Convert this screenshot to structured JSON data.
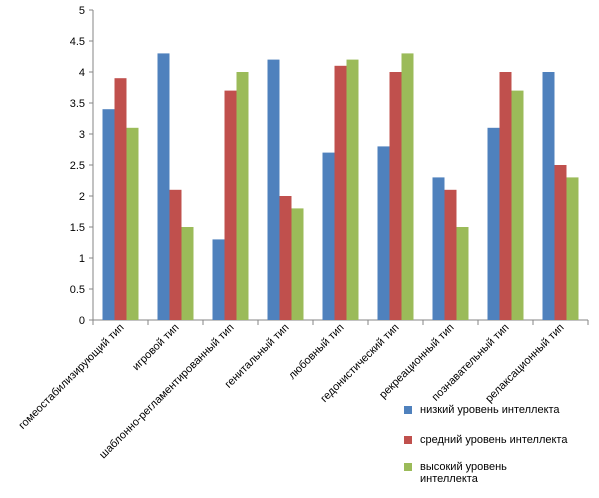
{
  "chart_data": {
    "type": "bar",
    "categories": [
      "гомеостабилизирующий тип",
      "игровой тип",
      "шаблонно-регламентированный тип",
      "генитальный тип",
      "любовный тип",
      "гедонистический тип",
      "рекреационный тип",
      "познавательный тип",
      "релаксационный тип"
    ],
    "series": [
      {
        "name": "низкий уровень интеллекта",
        "color": "#4f81bd",
        "values": [
          3.4,
          4.3,
          1.3,
          4.2,
          2.7,
          2.8,
          2.3,
          3.1,
          4.0
        ]
      },
      {
        "name": "средний уровень интеллекта",
        "color": "#c0504d",
        "values": [
          3.9,
          2.1,
          3.7,
          2.0,
          4.1,
          4.0,
          2.1,
          4.0,
          2.5
        ]
      },
      {
        "name": "высокий уровень интеллекта",
        "color": "#9bbb59",
        "values": [
          3.1,
          1.5,
          4.0,
          1.8,
          4.2,
          4.3,
          1.5,
          3.7,
          2.3
        ]
      }
    ],
    "y_ticks": [
      "0",
      "0.5",
      "1",
      "1.5",
      "2",
      "2.5",
      "3",
      "3.5",
      "4",
      "4.5",
      "5"
    ],
    "ylim": [
      0,
      5
    ],
    "grid": false,
    "legend_position": "bottom-right",
    "title": "",
    "xlabel": "",
    "ylabel": ""
  }
}
